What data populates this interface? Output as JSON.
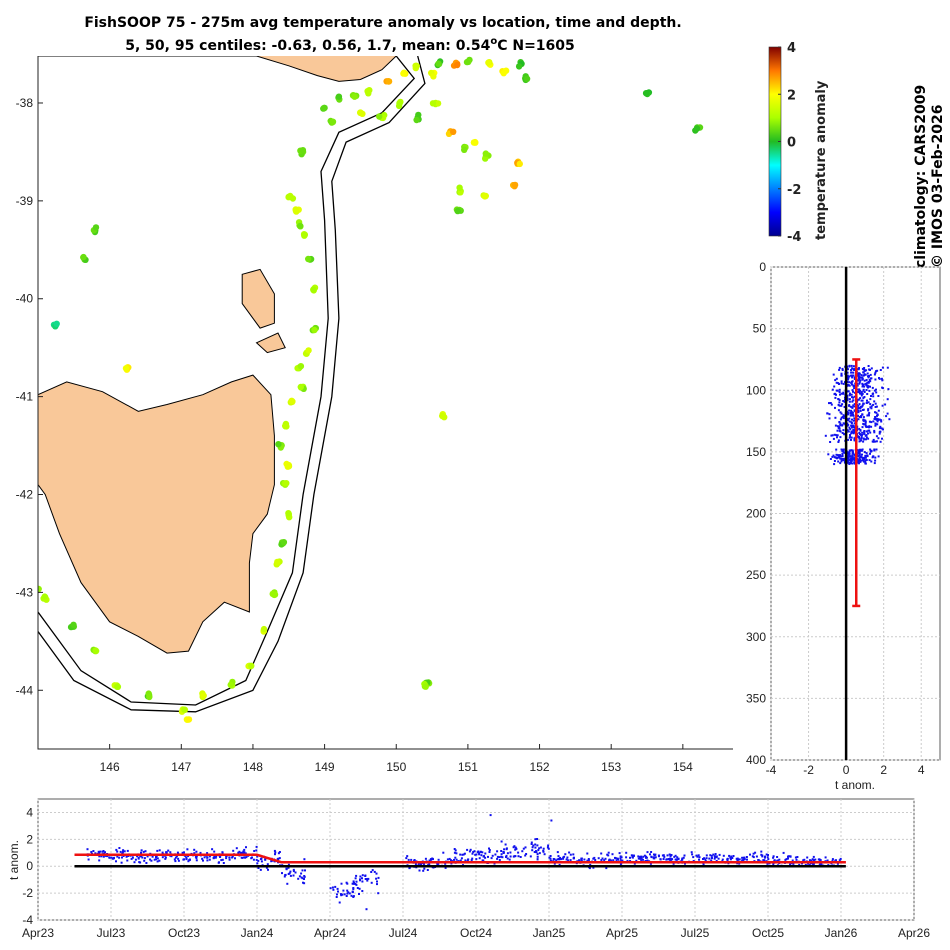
{
  "title_line1": "FishSOOP 75 - 275m avg temperature anomaly vs location, time and depth.",
  "title_line2_prefix": "5, 50, 95 centiles: -0.63, 0.56, 1.7, mean: 0.54",
  "title_line2_deg": "o",
  "title_line2_suffix": "C N=1605",
  "side_text_1": "climatology: CARS2009",
  "side_text_2": "© IMOS 03-Feb-2026",
  "colors": {
    "land": "#f9c899",
    "profile": "#1010ee",
    "mean": "#ee1111"
  },
  "chart_data": [
    {
      "name": "map",
      "type": "scatter",
      "title": "FishSOOP 75 - 275m avg temperature anomaly vs location, time and depth.",
      "xlim": [
        145.0,
        154.7
      ],
      "ylim": [
        -44.6,
        -37.52
      ],
      "x_ticks": [
        146,
        147,
        148,
        149,
        150,
        151,
        152,
        153,
        154
      ],
      "x_tick_labels": [
        "146",
        "147",
        "148",
        "149",
        "150",
        "151",
        "152",
        "153",
        "154"
      ],
      "y_ticks": [
        -38,
        -39,
        -40,
        -41,
        -42,
        -43,
        -44
      ],
      "y_tick_labels": [
        "-38",
        "-39",
        "-40",
        "-41",
        "-42",
        "-43",
        "-44"
      ],
      "coastline": {
        "victoria": [
          [
            145.0,
            -37.52
          ],
          [
            148.05,
            -37.52
          ],
          [
            148.5,
            -37.62
          ],
          [
            148.9,
            -37.72
          ],
          [
            149.2,
            -37.78
          ],
          [
            149.5,
            -37.76
          ],
          [
            149.8,
            -37.66
          ],
          [
            150.0,
            -37.52
          ],
          [
            150.0,
            -37.5
          ],
          [
            145.0,
            -37.5
          ]
        ],
        "tasmania": [
          [
            145.0,
            -40.98
          ],
          [
            145.4,
            -40.85
          ],
          [
            145.9,
            -40.95
          ],
          [
            146.4,
            -41.15
          ],
          [
            146.8,
            -41.08
          ],
          [
            147.3,
            -40.98
          ],
          [
            147.7,
            -40.85
          ],
          [
            148.0,
            -40.78
          ],
          [
            148.25,
            -40.98
          ],
          [
            148.3,
            -41.4
          ],
          [
            148.3,
            -41.9
          ],
          [
            148.2,
            -42.2
          ],
          [
            148.0,
            -42.4
          ],
          [
            147.95,
            -42.7
          ],
          [
            147.95,
            -43.2
          ],
          [
            147.6,
            -43.1
          ],
          [
            147.3,
            -43.3
          ],
          [
            147.1,
            -43.6
          ],
          [
            146.8,
            -43.62
          ],
          [
            146.4,
            -43.45
          ],
          [
            146.0,
            -43.3
          ],
          [
            145.6,
            -42.9
          ],
          [
            145.3,
            -42.4
          ],
          [
            145.1,
            -42.0
          ],
          [
            145.0,
            -41.9
          ]
        ],
        "flinders_island": [
          [
            147.85,
            -39.75
          ],
          [
            148.1,
            -39.7
          ],
          [
            148.3,
            -39.95
          ],
          [
            148.3,
            -40.25
          ],
          [
            148.1,
            -40.3
          ],
          [
            147.85,
            -40.05
          ]
        ],
        "cape_barren_island": [
          [
            148.05,
            -40.45
          ],
          [
            148.35,
            -40.35
          ],
          [
            148.45,
            -40.5
          ],
          [
            148.2,
            -40.55
          ]
        ]
      },
      "isobaths": [
        [
          [
            150.0,
            -37.52
          ],
          [
            150.25,
            -37.75
          ],
          [
            149.8,
            -38.1
          ],
          [
            149.2,
            -38.3
          ],
          [
            148.95,
            -38.7
          ],
          [
            149.0,
            -39.2
          ],
          [
            149.05,
            -40.2
          ],
          [
            148.95,
            -41.0
          ],
          [
            148.7,
            -42.0
          ],
          [
            148.55,
            -42.8
          ],
          [
            148.2,
            -43.4
          ],
          [
            147.9,
            -43.9
          ],
          [
            147.2,
            -44.15
          ],
          [
            146.3,
            -44.12
          ],
          [
            145.6,
            -43.8
          ],
          [
            145.0,
            -43.2
          ]
        ],
        [
          [
            150.3,
            -37.52
          ],
          [
            150.4,
            -37.8
          ],
          [
            149.9,
            -38.2
          ],
          [
            149.3,
            -38.4
          ],
          [
            149.1,
            -38.8
          ],
          [
            149.15,
            -39.3
          ],
          [
            149.2,
            -40.2
          ],
          [
            149.1,
            -41.0
          ],
          [
            148.85,
            -42.0
          ],
          [
            148.7,
            -42.8
          ],
          [
            148.35,
            -43.5
          ],
          [
            148.0,
            -44.0
          ],
          [
            147.2,
            -44.22
          ],
          [
            146.3,
            -44.2
          ],
          [
            145.5,
            -43.9
          ],
          [
            145.0,
            -43.4
          ]
        ]
      ],
      "colorbar": {
        "label": "temperature anomaly",
        "range": [
          -4,
          4
        ],
        "ticks": [
          4,
          2,
          0,
          -2,
          -4
        ],
        "tick_labels": [
          "4",
          "2",
          "0",
          "-2",
          "-4"
        ]
      },
      "points": [
        [
          150.27,
          -37.62,
          1.4
        ],
        [
          150.1,
          -37.7,
          2.0
        ],
        [
          149.9,
          -37.78,
          2.6
        ],
        [
          149.6,
          -37.88,
          1.2
        ],
        [
          149.4,
          -37.92,
          0.8
        ],
        [
          149.2,
          -37.95,
          0.5
        ],
        [
          149.0,
          -38.05,
          0.3
        ],
        [
          149.1,
          -38.2,
          0.6
        ],
        [
          149.5,
          -38.1,
          1.5
        ],
        [
          149.8,
          -38.15,
          0.9
        ],
        [
          150.05,
          -38.0,
          1.1
        ],
        [
          150.3,
          -38.15,
          0.2
        ],
        [
          150.5,
          -37.7,
          1.8
        ],
        [
          150.6,
          -37.6,
          0.4
        ],
        [
          150.85,
          -37.6,
          3.0
        ],
        [
          151.0,
          -37.58,
          0.5
        ],
        [
          151.3,
          -37.6,
          1.6
        ],
        [
          151.5,
          -37.68,
          2.0
        ],
        [
          151.75,
          -37.6,
          0.2
        ],
        [
          151.8,
          -37.75,
          0.3
        ],
        [
          150.55,
          -38.0,
          1.2
        ],
        [
          150.75,
          -38.3,
          2.5
        ],
        [
          150.95,
          -38.45,
          0.6
        ],
        [
          151.1,
          -38.4,
          1.9
        ],
        [
          151.25,
          -38.55,
          0.7
        ],
        [
          151.7,
          -38.6,
          2.4
        ],
        [
          151.65,
          -38.85,
          2.7
        ],
        [
          151.25,
          -38.95,
          1.6
        ],
        [
          150.9,
          -38.9,
          1.0
        ],
        [
          150.9,
          -39.1,
          0.4
        ],
        [
          153.5,
          -37.9,
          0.1
        ],
        [
          154.2,
          -38.25,
          0.3
        ],
        [
          148.7,
          -38.5,
          0.6
        ],
        [
          148.52,
          -38.95,
          1.2
        ],
        [
          148.6,
          -39.1,
          1.5
        ],
        [
          148.65,
          -39.25,
          0.8
        ],
        [
          148.72,
          -39.35,
          1.0
        ],
        [
          148.8,
          -39.6,
          0.4
        ],
        [
          148.85,
          -39.9,
          1.2
        ],
        [
          148.87,
          -40.3,
          0.7
        ],
        [
          148.75,
          -40.55,
          1.4
        ],
        [
          148.65,
          -40.7,
          0.9
        ],
        [
          148.7,
          -40.9,
          1.0
        ],
        [
          148.55,
          -41.05,
          1.6
        ],
        [
          148.45,
          -41.3,
          1.2
        ],
        [
          148.4,
          -41.5,
          0.6
        ],
        [
          148.5,
          -41.7,
          1.8
        ],
        [
          148.45,
          -41.9,
          0.9
        ],
        [
          148.5,
          -42.2,
          1.1
        ],
        [
          148.42,
          -42.5,
          0.5
        ],
        [
          148.35,
          -42.7,
          1.3
        ],
        [
          148.3,
          -43.0,
          0.8
        ],
        [
          148.15,
          -43.4,
          1.5
        ],
        [
          147.95,
          -43.75,
          1.2
        ],
        [
          147.7,
          -43.95,
          0.9
        ],
        [
          147.3,
          -44.05,
          1.6
        ],
        [
          147.05,
          -44.2,
          1.4
        ],
        [
          147.1,
          -44.3,
          2.0
        ],
        [
          146.55,
          -44.05,
          0.5
        ],
        [
          146.1,
          -43.95,
          1.2
        ],
        [
          145.8,
          -43.6,
          0.8
        ],
        [
          145.5,
          -43.35,
          0.4
        ],
        [
          145.1,
          -43.05,
          1.0
        ],
        [
          145.0,
          -42.97,
          0.7
        ],
        [
          145.8,
          -39.3,
          0.3
        ],
        [
          145.65,
          -39.6,
          0.5
        ],
        [
          145.25,
          -40.27,
          -0.6
        ],
        [
          146.25,
          -40.7,
          2.0
        ],
        [
          150.65,
          -41.18,
          1.6
        ],
        [
          150.45,
          -43.92,
          0.5
        ],
        [
          150.4,
          -43.96,
          0.8
        ]
      ]
    },
    {
      "name": "depth_profile",
      "type": "scatter",
      "xlabel": "t anom.",
      "xlim": [
        -4,
        5
      ],
      "ylim": [
        400,
        0
      ],
      "x_ticks": [
        -4,
        -2,
        0,
        2,
        4
      ],
      "x_tick_labels": [
        "-4",
        "-2",
        "0",
        "2",
        "4"
      ],
      "y_ticks": [
        0,
        50,
        100,
        150,
        200,
        250,
        300,
        350,
        400
      ],
      "y_tick_labels": [
        "0",
        "50",
        "100",
        "150",
        "200",
        "250",
        "300",
        "350",
        "400"
      ],
      "mean_anomaly": 0.54,
      "mean_depth_range": [
        75,
        275
      ],
      "cluster_1": {
        "depth_range": [
          80,
          142
        ],
        "anomaly_center": 0.6,
        "anomaly_spread": 2.0
      },
      "cluster_2": {
        "depth_range": [
          148,
          160
        ],
        "anomaly_center": 0.4,
        "anomaly_spread": 1.6
      }
    },
    {
      "name": "time_series",
      "type": "scatter",
      "ylabel": "t anom.",
      "xlim": [
        "Apr23",
        "Apr26"
      ],
      "ylim": [
        -4,
        5
      ],
      "x_ticks": [
        "Apr23",
        "Jul23",
        "Oct23",
        "Jan24",
        "Apr24",
        "Jul24",
        "Oct24",
        "Jan25",
        "Apr25",
        "Jul25",
        "Oct25",
        "Jan26",
        "Apr26"
      ],
      "y_ticks": [
        4,
        2,
        0,
        -2,
        -4
      ],
      "y_tick_labels": [
        "4",
        "2",
        "0",
        "-2",
        "-4"
      ],
      "mean_line": [
        [
          1.5,
          0.85
        ],
        [
          9.0,
          0.85
        ],
        [
          10.0,
          0.3
        ],
        [
          33.2,
          0.3
        ]
      ],
      "monthly": [
        {
          "month": 2,
          "center": 0.9,
          "spread": 0.6
        },
        {
          "month": 3,
          "center": 0.8,
          "spread": 0.7
        },
        {
          "month": 4,
          "center": 0.7,
          "spread": 0.7
        },
        {
          "month": 5,
          "center": 0.8,
          "spread": 0.6
        },
        {
          "month": 6,
          "center": 0.8,
          "spread": 0.8
        },
        {
          "month": 7,
          "center": 0.7,
          "spread": 0.7
        },
        {
          "month": 8,
          "center": 0.8,
          "spread": 0.8
        },
        {
          "month": 9,
          "center": 0.5,
          "spread": 1.0
        },
        {
          "month": 10,
          "center": -0.4,
          "spread": 1.2
        },
        {
          "month": 12,
          "center": -1.8,
          "spread": 1.0
        },
        {
          "month": 13,
          "center": -1.0,
          "spread": 1.4
        },
        {
          "month": 15,
          "center": 0.2,
          "spread": 0.7
        },
        {
          "month": 16,
          "center": 0.4,
          "spread": 0.8
        },
        {
          "month": 17,
          "center": 0.7,
          "spread": 0.9
        },
        {
          "month": 18,
          "center": 0.9,
          "spread": 1.0
        },
        {
          "month": 19,
          "center": 1.0,
          "spread": 1.0
        },
        {
          "month": 20,
          "center": 1.2,
          "spread": 1.1
        },
        {
          "month": 21,
          "center": 0.6,
          "spread": 0.8
        },
        {
          "month": 22,
          "center": 0.3,
          "spread": 0.8
        },
        {
          "month": 23,
          "center": 0.5,
          "spread": 0.7
        },
        {
          "month": 24,
          "center": 0.6,
          "spread": 0.6
        },
        {
          "month": 25,
          "center": 0.6,
          "spread": 0.6
        },
        {
          "month": 26,
          "center": 0.5,
          "spread": 0.6
        },
        {
          "month": 27,
          "center": 0.6,
          "spread": 0.6
        },
        {
          "month": 28,
          "center": 0.5,
          "spread": 0.6
        },
        {
          "month": 29,
          "center": 0.6,
          "spread": 0.7
        },
        {
          "month": 30,
          "center": 0.5,
          "spread": 0.6
        },
        {
          "month": 31,
          "center": 0.4,
          "spread": 0.6
        },
        {
          "month": 32,
          "center": 0.3,
          "spread": 0.5
        }
      ],
      "outliers": [
        [
          18.6,
          3.8
        ],
        [
          21.1,
          3.4
        ],
        [
          13.5,
          -3.2
        ],
        [
          12.4,
          -2.7
        ]
      ]
    }
  ]
}
